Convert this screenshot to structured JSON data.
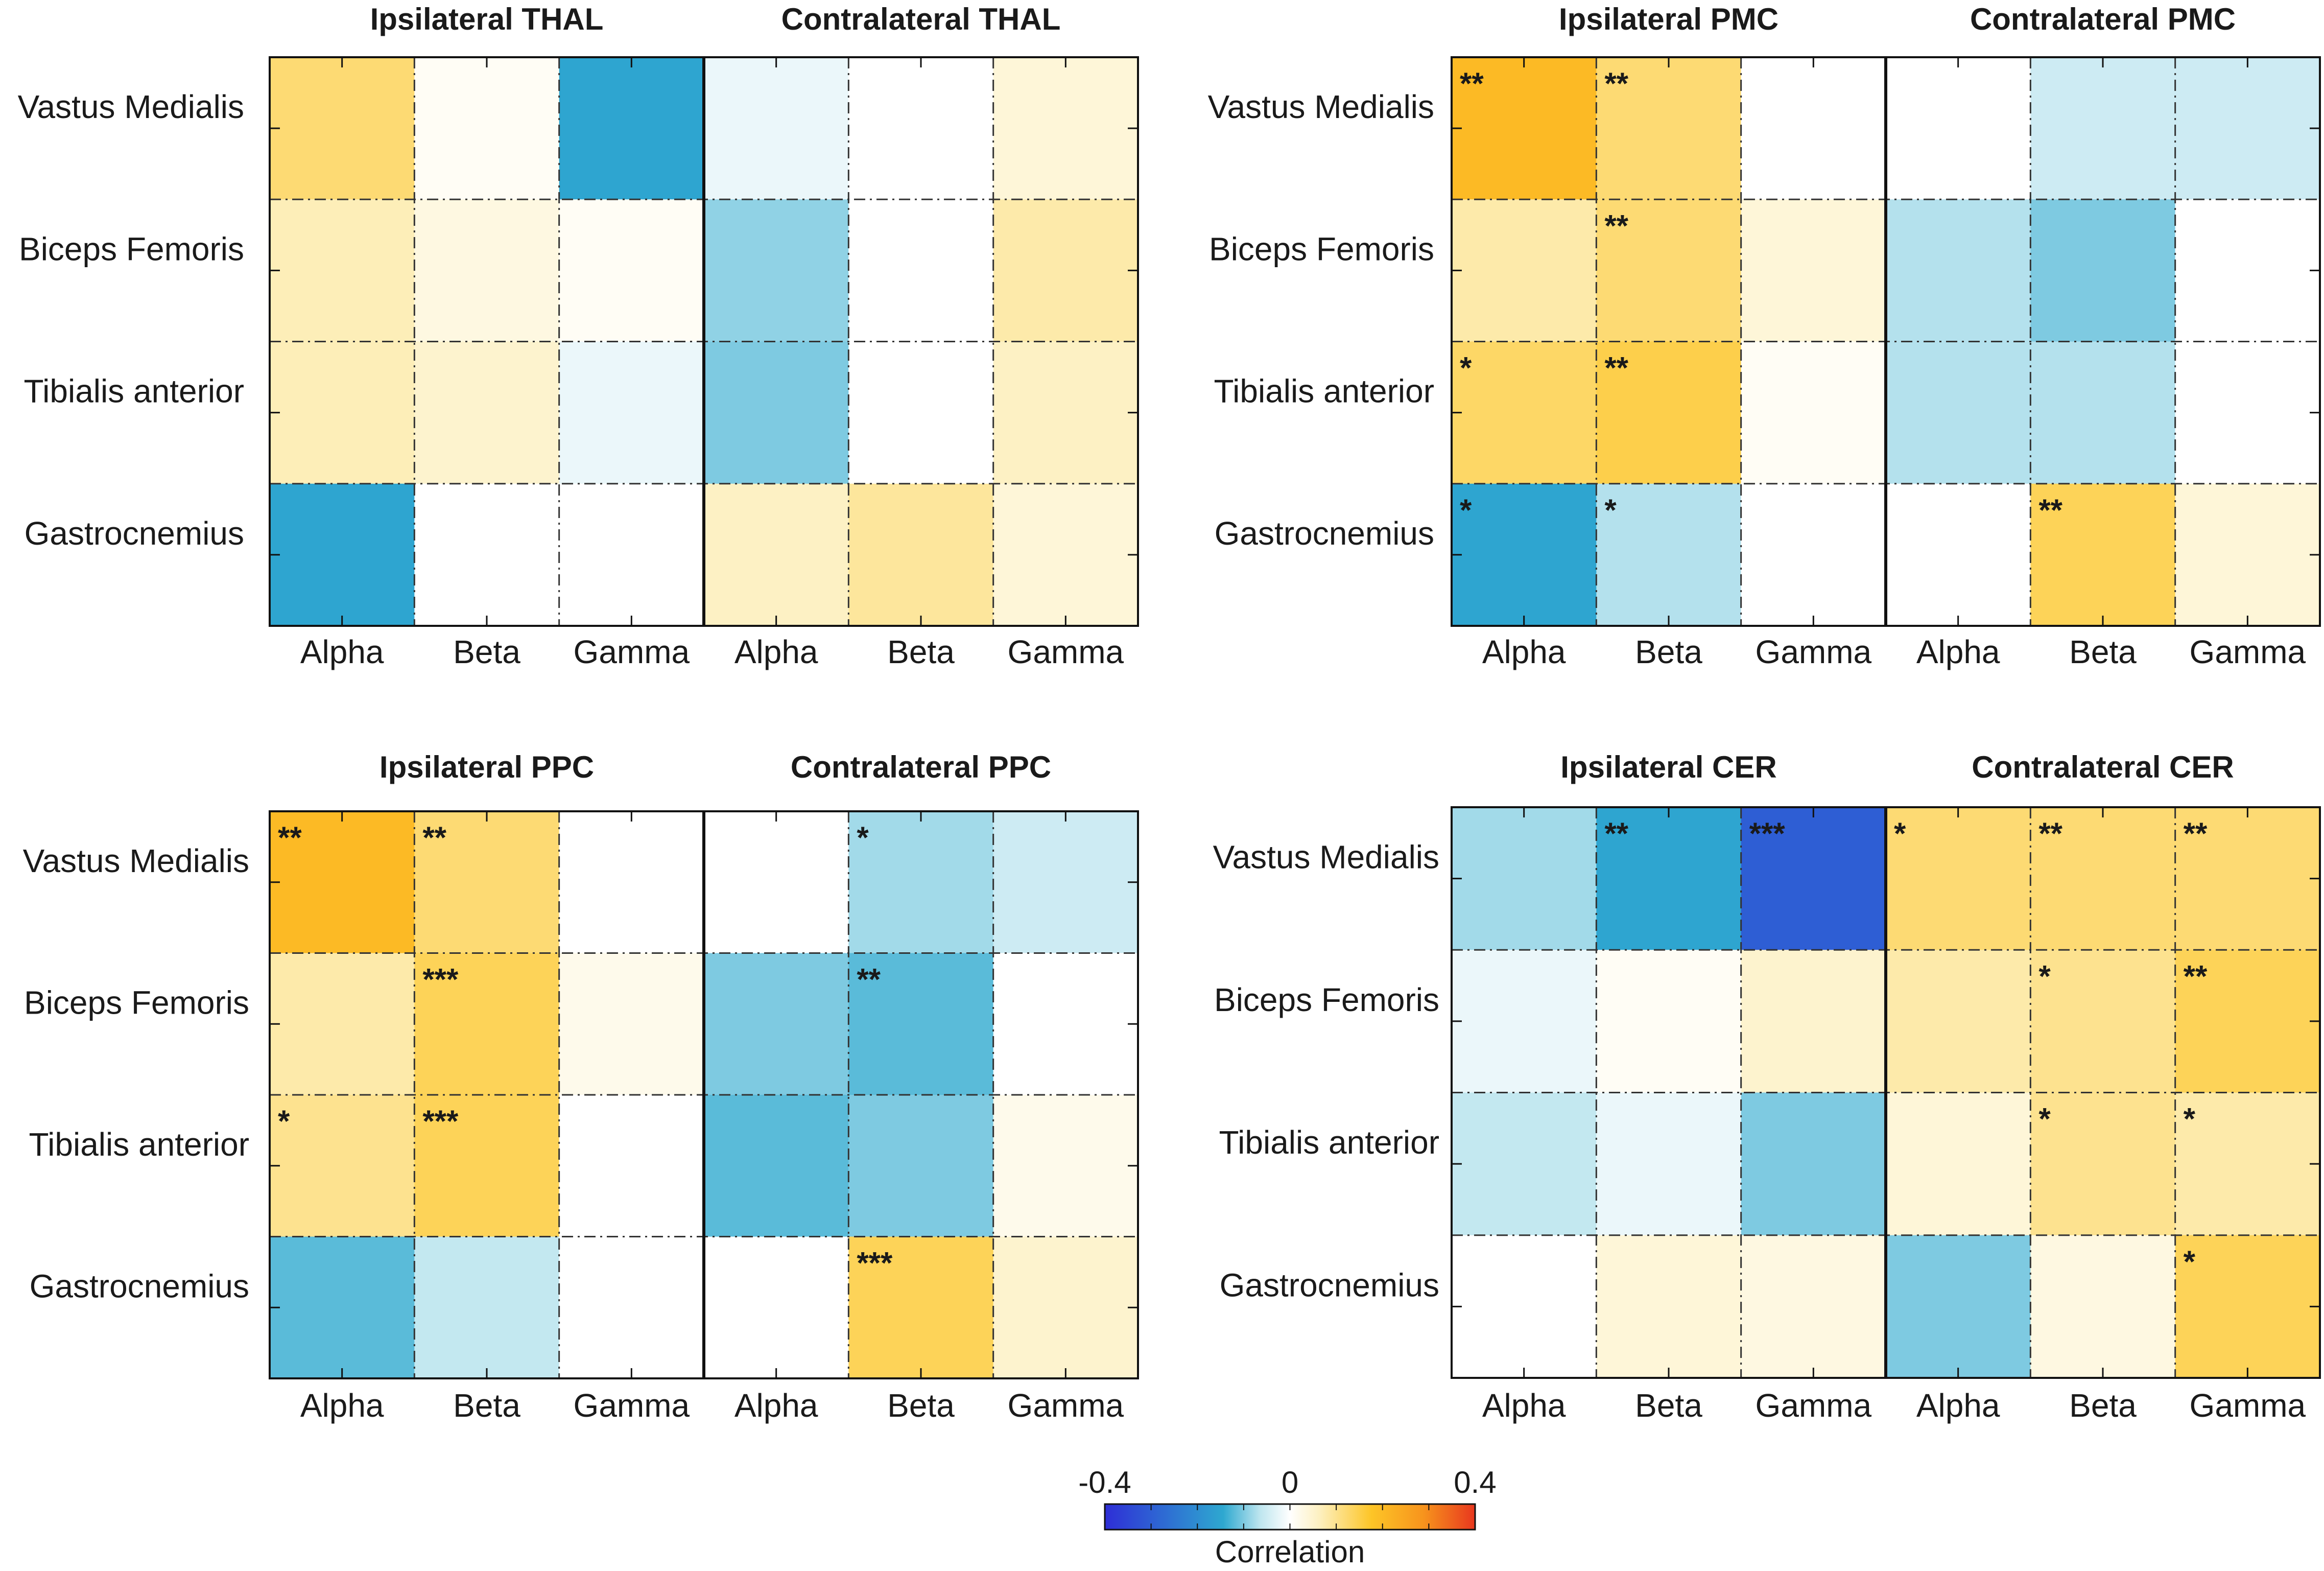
{
  "chart_data": [
    {
      "type": "heatmap",
      "panel": "top-left",
      "titles": [
        "Ipsilateral THAL",
        "Contralateral THAL"
      ],
      "rows": [
        "Vastus Medialis",
        "Biceps Femoris",
        "Tibialis anterior",
        "Gastrocnemius"
      ],
      "cols": [
        "Alpha",
        "Beta",
        "Gamma",
        "Alpha",
        "Beta",
        "Gamma"
      ],
      "values": [
        [
          0.12,
          0.01,
          -0.15,
          -0.02,
          0.0,
          0.04
        ],
        [
          0.07,
          0.03,
          0.01,
          -0.09,
          0.0,
          0.08
        ],
        [
          0.07,
          0.05,
          -0.02,
          -0.1,
          0.0,
          0.06
        ],
        [
          -0.15,
          0.0,
          0.0,
          0.06,
          0.09,
          0.04
        ]
      ],
      "significance": [
        [
          "",
          "",
          "",
          "",
          "",
          ""
        ],
        [
          "",
          "",
          "",
          "",
          "",
          ""
        ],
        [
          "",
          "",
          "",
          "",
          "",
          ""
        ],
        [
          "",
          "",
          "",
          "",
          "",
          ""
        ]
      ]
    },
    {
      "type": "heatmap",
      "panel": "top-right",
      "titles": [
        "Ipsilateral PMC",
        "Contralateral PMC"
      ],
      "rows": [
        "Vastus Medialis",
        "Biceps Femoris",
        "Tibialis anterior",
        "Gastrocnemius"
      ],
      "cols": [
        "Alpha",
        "Beta",
        "Gamma",
        "Alpha",
        "Beta",
        "Gamma"
      ],
      "values": [
        [
          0.2,
          0.12,
          0.0,
          0.0,
          -0.05,
          -0.05
        ],
        [
          0.08,
          0.12,
          0.04,
          -0.07,
          -0.1,
          0.0
        ],
        [
          0.13,
          0.15,
          0.01,
          -0.07,
          -0.07,
          0.0
        ],
        [
          -0.15,
          -0.07,
          0.0,
          0.0,
          0.14,
          0.04
        ]
      ],
      "significance": [
        [
          "**",
          "**",
          "",
          "",
          "",
          ""
        ],
        [
          "",
          "**",
          "",
          "",
          "",
          ""
        ],
        [
          "*",
          "**",
          "",
          "",
          "",
          ""
        ],
        [
          "*",
          "*",
          "",
          "",
          "**",
          ""
        ]
      ]
    },
    {
      "type": "heatmap",
      "panel": "bottom-left",
      "titles": [
        "Ipsilateral PPC",
        "Contralateral PPC"
      ],
      "rows": [
        "Vastus Medialis",
        "Biceps Femoris",
        "Tibialis anterior",
        "Gastrocnemius"
      ],
      "cols": [
        "Alpha",
        "Beta",
        "Gamma",
        "Alpha",
        "Beta",
        "Gamma"
      ],
      "values": [
        [
          0.2,
          0.12,
          0.0,
          0.0,
          -0.08,
          -0.05
        ],
        [
          0.08,
          0.14,
          0.02,
          -0.1,
          -0.12,
          0.0
        ],
        [
          0.1,
          0.14,
          0.0,
          -0.12,
          -0.1,
          0.02
        ],
        [
          -0.12,
          -0.06,
          0.0,
          0.0,
          0.14,
          0.05
        ]
      ],
      "significance": [
        [
          "**",
          "**",
          "",
          "",
          "*",
          ""
        ],
        [
          "",
          "***",
          "",
          "",
          "**",
          ""
        ],
        [
          "*",
          "***",
          "",
          "",
          "",
          ""
        ],
        [
          "",
          "",
          "",
          "",
          "***",
          ""
        ]
      ]
    },
    {
      "type": "heatmap",
      "panel": "bottom-right",
      "titles": [
        "Ipsilateral CER",
        "Contralateral CER"
      ],
      "rows": [
        "Vastus Medialis",
        "Biceps Femoris",
        "Tibialis anterior",
        "Gastrocnemius"
      ],
      "cols": [
        "Alpha",
        "Beta",
        "Gamma",
        "Alpha",
        "Beta",
        "Gamma"
      ],
      "values": [
        [
          -0.08,
          -0.15,
          -0.3,
          0.12,
          0.12,
          0.12
        ],
        [
          -0.02,
          0.01,
          0.05,
          0.08,
          0.1,
          0.14
        ],
        [
          -0.06,
          -0.02,
          -0.1,
          0.04,
          0.1,
          0.08
        ],
        [
          0.0,
          0.04,
          0.03,
          -0.1,
          0.03,
          0.14
        ]
      ],
      "significance": [
        [
          "",
          "**",
          "***",
          "*",
          "**",
          "**"
        ],
        [
          "",
          "",
          "",
          "",
          "*",
          "**"
        ],
        [
          "",
          "",
          "",
          "",
          "*",
          "*"
        ],
        [
          "",
          "",
          "",
          "",
          "",
          "*"
        ]
      ]
    }
  ],
  "colorbar": {
    "min_label": "-0.4",
    "mid_label": "0",
    "max_label": "0.4",
    "label": "Correlation",
    "range": [
      -0.4,
      0.4
    ],
    "stops": [
      "#2e2ed6",
      "#2ea8d0",
      "#bfe6ef",
      "#ffffff",
      "#fdf0c0",
      "#fdc527",
      "#f7941d",
      "#e8371e"
    ]
  }
}
